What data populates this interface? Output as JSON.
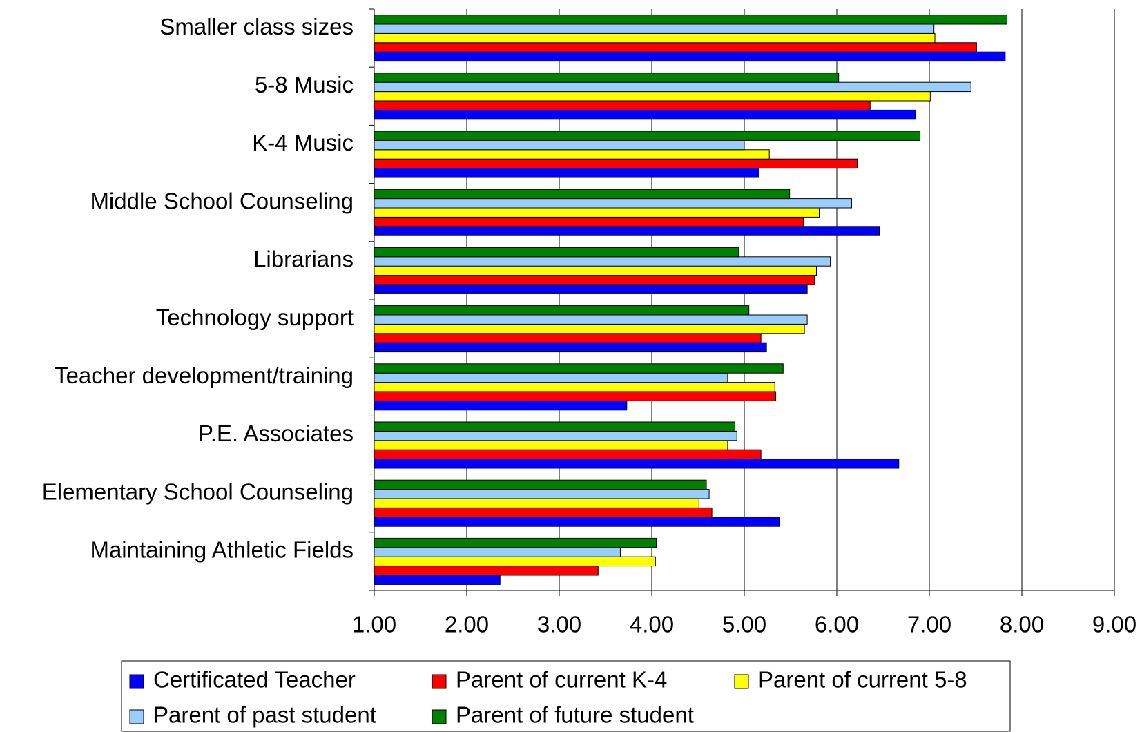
{
  "chart_data": {
    "type": "bar",
    "orientation": "horizontal",
    "categories": [
      "Smaller class sizes",
      "5-8 Music",
      "K-4 Music",
      "Middle School Counseling",
      "Librarians",
      "Technology support",
      "Teacher development/training",
      "P.E. Associates",
      "Elementary School Counseling",
      "Maintaining Athletic Fields"
    ],
    "series": [
      {
        "name": "Certificated Teacher",
        "color": "#0000ff",
        "values": [
          7.82,
          6.85,
          5.16,
          6.46,
          5.68,
          5.24,
          3.73,
          6.67,
          5.38,
          2.36
        ]
      },
      {
        "name": "Parent of current K-4",
        "color": "#ff0000",
        "values": [
          7.51,
          6.36,
          6.22,
          5.64,
          5.76,
          5.18,
          5.34,
          5.18,
          4.65,
          3.42
        ]
      },
      {
        "name": "Parent of current 5-8",
        "color": "#ffff00",
        "values": [
          7.06,
          7.01,
          5.27,
          5.81,
          5.78,
          5.65,
          5.33,
          4.82,
          4.51,
          4.04
        ]
      },
      {
        "name": "Parent of past student",
        "color": "#99ccff",
        "values": [
          7.05,
          7.45,
          5.0,
          6.16,
          5.93,
          5.68,
          4.82,
          4.92,
          4.62,
          3.66
        ]
      },
      {
        "name": "Parent of future student",
        "color": "#008000",
        "values": [
          7.84,
          6.02,
          6.9,
          5.49,
          4.94,
          5.05,
          5.42,
          4.9,
          4.59,
          4.05
        ]
      }
    ],
    "xlim": [
      1,
      9
    ],
    "xticks": [
      {
        "value": 1,
        "label": "1.00"
      },
      {
        "value": 2,
        "label": "2.00"
      },
      {
        "value": 3,
        "label": "3.00"
      },
      {
        "value": 4,
        "label": "4.00"
      },
      {
        "value": 5,
        "label": "5.00"
      },
      {
        "value": 6,
        "label": "6.00"
      },
      {
        "value": 7,
        "label": "7.00"
      },
      {
        "value": 8,
        "label": "8.00"
      },
      {
        "value": 9,
        "label": "9.00"
      }
    ],
    "grid": true,
    "legend": "bottom"
  }
}
